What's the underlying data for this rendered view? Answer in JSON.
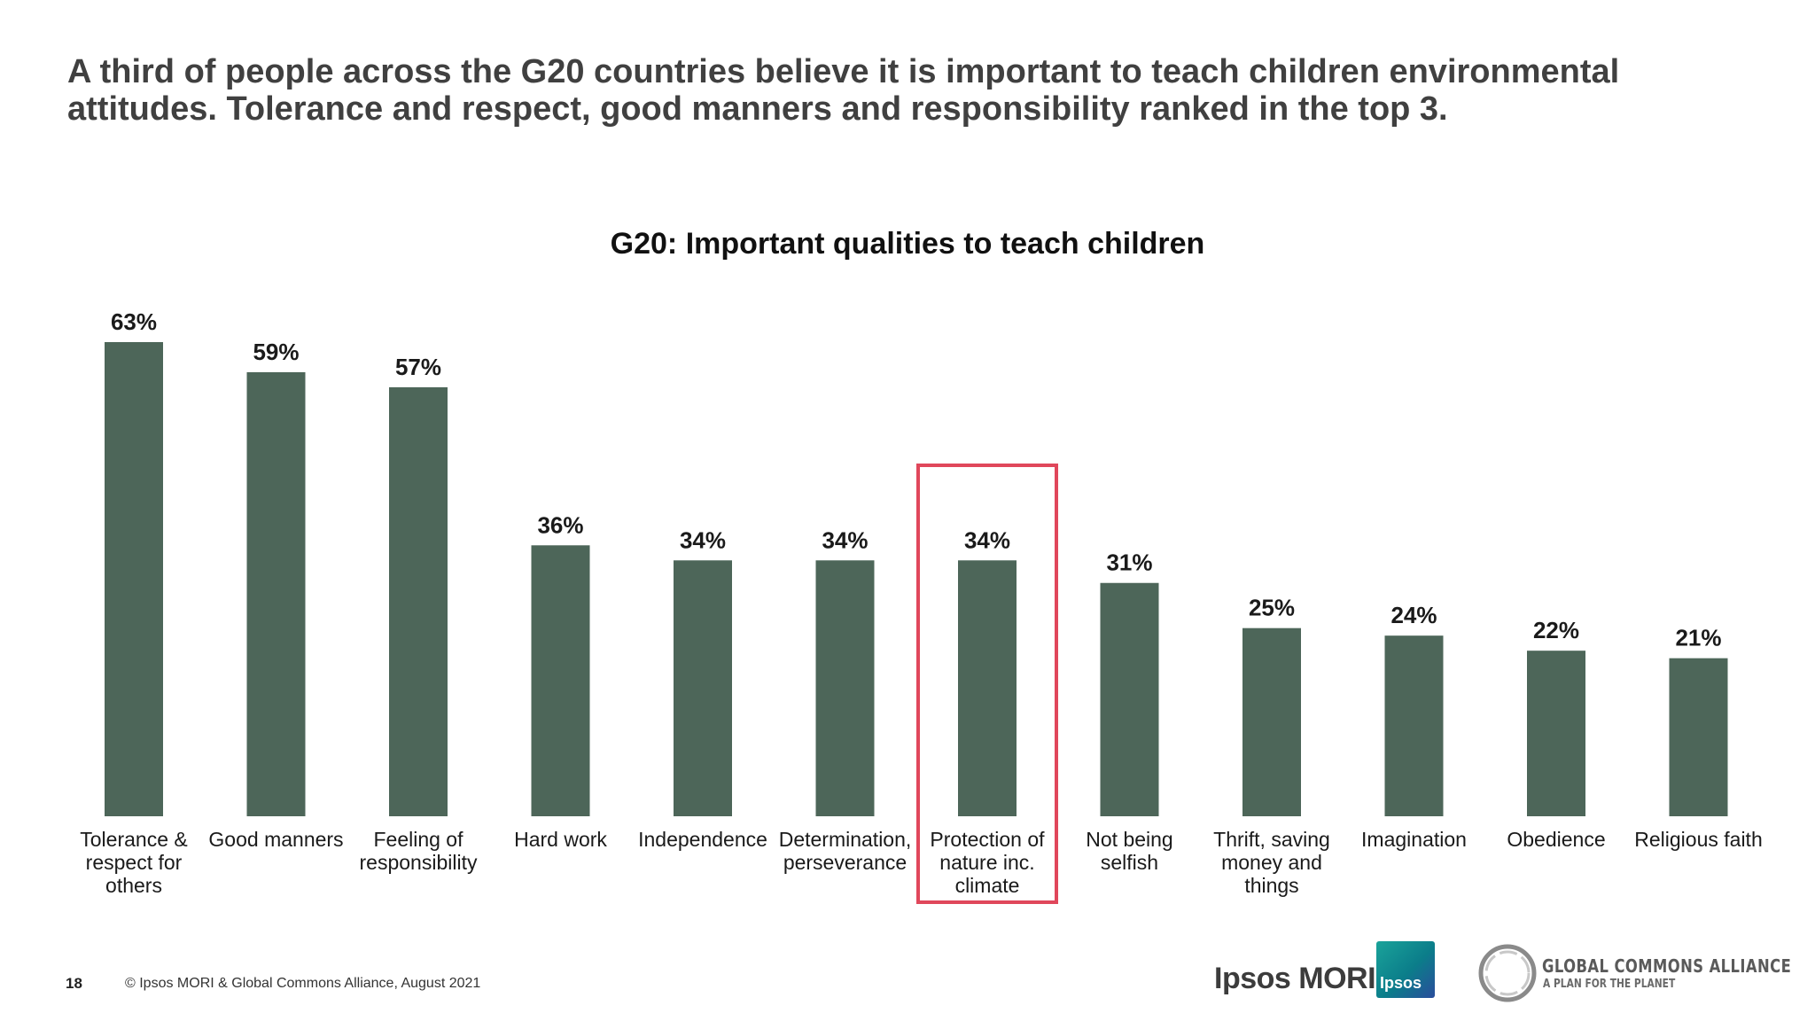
{
  "headline": "A third of people across the G20 countries believe it is important to teach children environmental attitudes. Tolerance and respect, good manners and responsibility ranked in the top 3.",
  "chart_data": {
    "type": "bar",
    "title": "G20: Important qualities to teach children",
    "xlabel": "",
    "ylabel": "",
    "ylim": [
      0,
      63
    ],
    "grid": false,
    "value_suffix": "%",
    "bar_color": "#4d6659",
    "highlight_color": "#e0475b",
    "highlighted_category_index": 6,
    "categories": [
      [
        "Tolerance &",
        "respect for",
        "others"
      ],
      [
        "Good manners"
      ],
      [
        "Feeling of",
        "responsibility"
      ],
      [
        "Hard work"
      ],
      [
        "Independence"
      ],
      [
        "Determination,",
        "perseverance"
      ],
      [
        "Protection of",
        "nature inc.",
        "climate"
      ],
      [
        "Not being",
        "selfish"
      ],
      [
        "Thrift, saving",
        "money and",
        "things"
      ],
      [
        "Imagination"
      ],
      [
        "Obedience"
      ],
      [
        "Religious faith"
      ]
    ],
    "values": [
      63,
      59,
      57,
      36,
      34,
      34,
      34,
      31,
      25,
      24,
      22,
      21
    ]
  },
  "footer": {
    "page_number": "18",
    "copyright": "© Ipsos MORI & Global Commons Alliance, August 2021"
  },
  "logos": {
    "ipsos_mori": "Ipsos MORI",
    "ipsos_badge": "Ipsos",
    "gca_name": "GLOBAL COMMONS ALLIANCE",
    "gca_tagline": "A PLAN FOR THE PLANET"
  }
}
